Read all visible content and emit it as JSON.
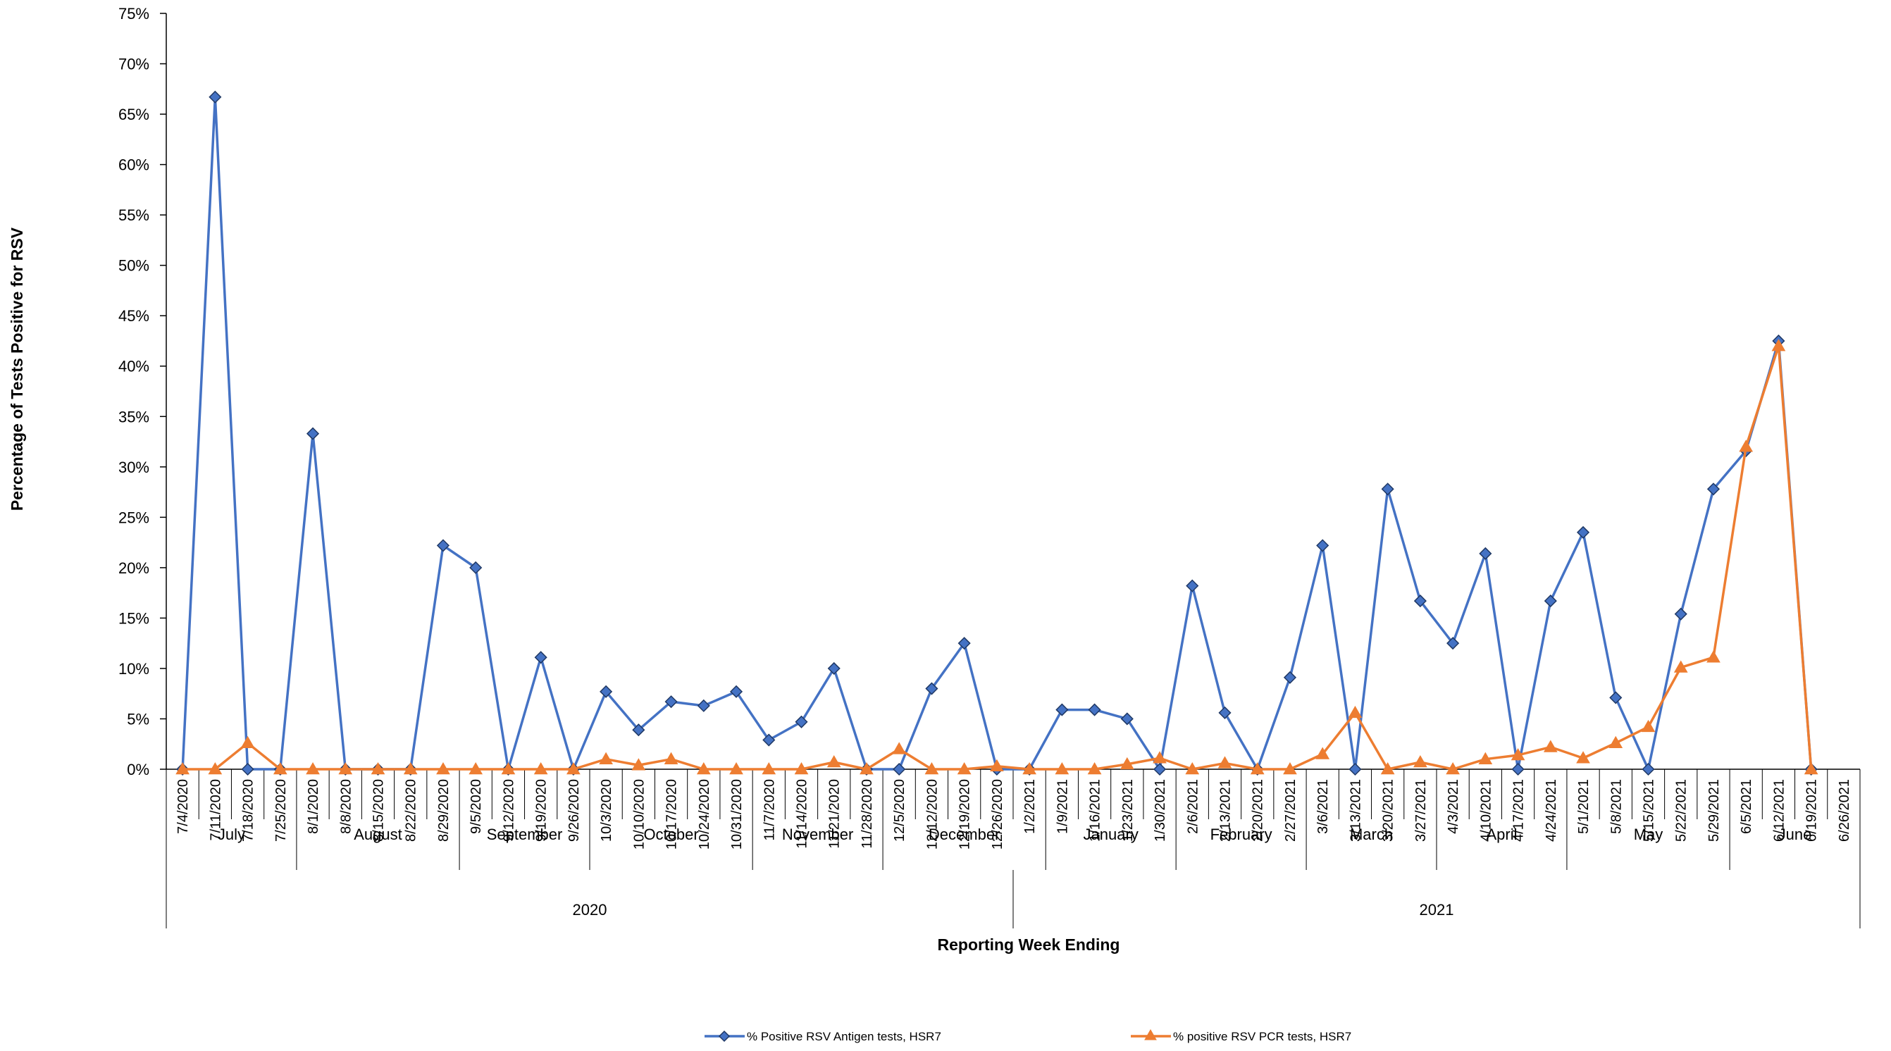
{
  "chart_data": {
    "type": "line",
    "ylabel": "Percentage of Tests Positive for RSV",
    "xlabel": "Reporting Week Ending",
    "ylim": [
      0,
      75
    ],
    "yticks": [
      "0%",
      "5%",
      "10%",
      "15%",
      "20%",
      "25%",
      "30%",
      "35%",
      "40%",
      "45%",
      "50%",
      "55%",
      "60%",
      "65%",
      "70%",
      "75%"
    ],
    "grid": false,
    "legend_position": "bottom",
    "x": [
      "7/4/2020",
      "7/11/2020",
      "7/18/2020",
      "7/25/2020",
      "8/1/2020",
      "8/8/2020",
      "8/15/2020",
      "8/22/2020",
      "8/29/2020",
      "9/5/2020",
      "9/12/2020",
      "9/19/2020",
      "9/26/2020",
      "10/3/2020",
      "10/10/2020",
      "10/17/2020",
      "10/24/2020",
      "10/31/2020",
      "11/7/2020",
      "11/14/2020",
      "11/21/2020",
      "11/28/2020",
      "12/5/2020",
      "12/12/2020",
      "12/19/2020",
      "12/26/2020",
      "1/2/2021",
      "1/9/2021",
      "1/16/2021",
      "1/23/2021",
      "1/30/2021",
      "2/6/2021",
      "2/13/2021",
      "2/20/2021",
      "2/27/2021",
      "3/6/2021",
      "3/13/2021",
      "3/20/2021",
      "3/27/2021",
      "4/3/2021",
      "4/10/2021",
      "4/17/2021",
      "4/24/2021",
      "5/1/2021",
      "5/8/2021",
      "5/15/2021",
      "5/22/2021",
      "5/29/2021",
      "6/5/2021",
      "6/12/2021",
      "6/19/2021",
      "6/26/2021"
    ],
    "months": [
      {
        "label": "July",
        "count": 4
      },
      {
        "label": "August",
        "count": 5
      },
      {
        "label": "September",
        "count": 4
      },
      {
        "label": "October",
        "count": 5
      },
      {
        "label": "November",
        "count": 4
      },
      {
        "label": "December",
        "count": 5
      },
      {
        "label": "January",
        "count": 4
      },
      {
        "label": "February",
        "count": 4
      },
      {
        "label": "March",
        "count": 4
      },
      {
        "label": "April",
        "count": 4
      },
      {
        "label": "May",
        "count": 5
      },
      {
        "label": "June",
        "count": 4
      }
    ],
    "years": [
      {
        "label": "2020",
        "count": 26
      },
      {
        "label": "2021",
        "count": 26
      }
    ],
    "series": [
      {
        "name": "% Positive RSV Antigen tests, HSR7",
        "color": "#4472C4",
        "marker": "diamond",
        "values": [
          0,
          66.7,
          0,
          0,
          33.3,
          0,
          0,
          0,
          22.2,
          20.0,
          0,
          11.1,
          0,
          7.7,
          3.9,
          6.7,
          6.3,
          7.7,
          2.9,
          4.7,
          10.0,
          0,
          0,
          8.0,
          12.5,
          0,
          0,
          5.9,
          5.9,
          5.0,
          0,
          18.2,
          5.6,
          0,
          9.1,
          22.2,
          0,
          27.8,
          16.7,
          12.5,
          21.4,
          0,
          16.7,
          23.5,
          7.1,
          0,
          15.4,
          27.8,
          31.6,
          42.5,
          0,
          null
        ]
      },
      {
        "name": "% positive RSV PCR tests, HSR7",
        "color": "#ED7D31",
        "marker": "triangle",
        "values": [
          0,
          0,
          2.6,
          0,
          0,
          0,
          0,
          0,
          0,
          0,
          0,
          0,
          0,
          1.0,
          0.4,
          1.0,
          0,
          0,
          0,
          0,
          0.7,
          0,
          2.0,
          0,
          0,
          0.3,
          0,
          0,
          0,
          0.5,
          1.1,
          0,
          0.6,
          0,
          0,
          1.5,
          5.6,
          0,
          0.7,
          0,
          1.0,
          1.4,
          2.2,
          1.1,
          2.6,
          4.2,
          10.1,
          11.1,
          32.0,
          42.0,
          0,
          null
        ]
      }
    ]
  }
}
